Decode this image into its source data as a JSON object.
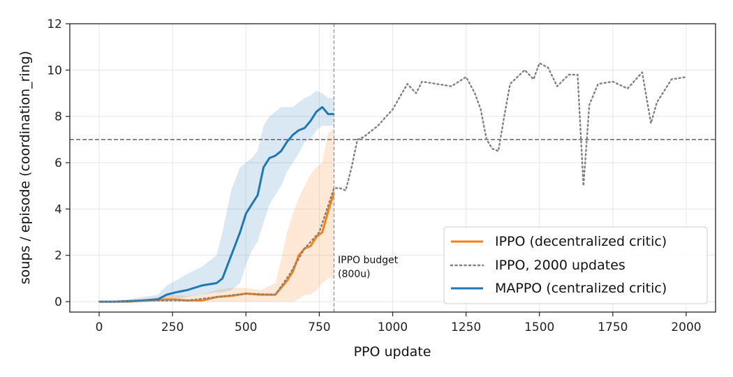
{
  "chart_data": {
    "type": "line",
    "xlabel": "PPO update",
    "ylabel": "soups / episode (coordination_ring)",
    "xlim": [
      -100,
      2100
    ],
    "ylim": [
      -0.45,
      12
    ],
    "x_ticks": [
      0,
      250,
      500,
      750,
      1000,
      1250,
      1500,
      1750,
      2000
    ],
    "y_ticks": [
      0,
      2,
      4,
      6,
      8,
      10,
      12
    ],
    "grid": true,
    "legend_position": "lower-right",
    "reference_lines": [
      {
        "orientation": "horizontal",
        "value": 7,
        "style": "dashed",
        "color": "#444444"
      },
      {
        "orientation": "vertical",
        "value": 800,
        "style": "dashed",
        "color": "#888888"
      }
    ],
    "annotation": {
      "text_lines": [
        "IPPO budget",
        "(800u)"
      ],
      "x": 800,
      "y": 1.4
    },
    "series": [
      {
        "name": "IPPO (decentralized critic)",
        "color": "#ff7f0e",
        "style": "solid",
        "x": [
          0,
          50,
          100,
          150,
          200,
          250,
          300,
          350,
          400,
          450,
          500,
          550,
          600,
          620,
          640,
          660,
          680,
          700,
          720,
          740,
          760,
          780,
          800
        ],
        "y": [
          0,
          0,
          0,
          0.05,
          0.08,
          0.1,
          0.05,
          0.05,
          0.2,
          0.25,
          0.35,
          0.3,
          0.3,
          0.6,
          0.9,
          1.3,
          2.0,
          2.3,
          2.4,
          2.8,
          3.0,
          3.9,
          4.7
        ],
        "band_low": [
          0,
          0,
          0,
          0,
          0,
          0,
          0,
          0,
          0,
          0,
          0,
          0,
          0,
          0,
          0,
          0,
          0.1,
          0.3,
          0.3,
          0.5,
          0.8,
          1.0,
          1.0
        ],
        "band_high": [
          0,
          0.05,
          0.05,
          0.1,
          0.2,
          0.3,
          0.25,
          0.3,
          0.5,
          0.6,
          0.6,
          0.5,
          0.8,
          1.8,
          3.0,
          3.8,
          4.5,
          5.0,
          5.5,
          5.8,
          6.0,
          7.3,
          7.5
        ]
      },
      {
        "name": "IPPO, 2000 updates",
        "color": "#808080",
        "style": "dotted",
        "x": [
          0,
          100,
          200,
          300,
          400,
          500,
          600,
          650,
          700,
          750,
          800,
          820,
          840,
          860,
          880,
          900,
          950,
          1000,
          1050,
          1080,
          1100,
          1150,
          1200,
          1250,
          1280,
          1300,
          1320,
          1340,
          1360,
          1380,
          1400,
          1450,
          1480,
          1500,
          1530,
          1560,
          1600,
          1630,
          1650,
          1670,
          1700,
          1750,
          1800,
          1850,
          1880,
          1900,
          1950,
          2000
        ],
        "y": [
          0,
          0,
          0.05,
          0.05,
          0.2,
          0.35,
          0.3,
          1.2,
          2.3,
          3.0,
          4.9,
          4.9,
          4.8,
          5.8,
          7.0,
          7.1,
          7.6,
          8.3,
          9.4,
          9.0,
          9.5,
          9.4,
          9.3,
          9.7,
          9.0,
          8.3,
          7.0,
          6.6,
          6.5,
          8.0,
          9.4,
          10.0,
          9.6,
          10.3,
          10.1,
          9.3,
          9.8,
          9.8,
          5.0,
          8.5,
          9.4,
          9.5,
          9.2,
          9.9,
          7.7,
          8.6,
          9.6,
          9.7
        ]
      },
      {
        "name": "MAPPO (centralized critic)",
        "color": "#1f77b4",
        "style": "solid",
        "x": [
          0,
          50,
          100,
          150,
          200,
          230,
          260,
          300,
          350,
          400,
          420,
          450,
          480,
          500,
          520,
          540,
          560,
          580,
          600,
          620,
          640,
          660,
          680,
          700,
          720,
          740,
          760,
          780,
          800
        ],
        "y": [
          0,
          0,
          0.02,
          0.05,
          0.1,
          0.3,
          0.4,
          0.5,
          0.7,
          0.8,
          1.0,
          2.0,
          3.0,
          3.8,
          4.2,
          4.6,
          5.8,
          6.2,
          6.3,
          6.5,
          6.9,
          7.2,
          7.4,
          7.5,
          7.8,
          8.2,
          8.4,
          8.1,
          8.1
        ],
        "band_low": [
          0,
          0,
          0,
          0,
          0,
          0,
          0.1,
          0.2,
          0.3,
          0.4,
          0.4,
          0.5,
          0.8,
          1.6,
          2.2,
          2.6,
          3.4,
          4.2,
          4.6,
          5.0,
          5.6,
          6.0,
          6.4,
          6.9,
          7.0,
          7.4,
          7.6,
          7.6,
          7.6
        ],
        "band_high": [
          0,
          0.02,
          0.1,
          0.2,
          0.3,
          0.7,
          0.9,
          1.2,
          1.5,
          2.0,
          3.0,
          4.8,
          5.8,
          6.0,
          6.2,
          6.5,
          7.6,
          8.0,
          8.2,
          8.4,
          8.4,
          8.4,
          8.6,
          8.8,
          8.9,
          9.1,
          9.0,
          8.8,
          8.8
        ]
      }
    ]
  }
}
